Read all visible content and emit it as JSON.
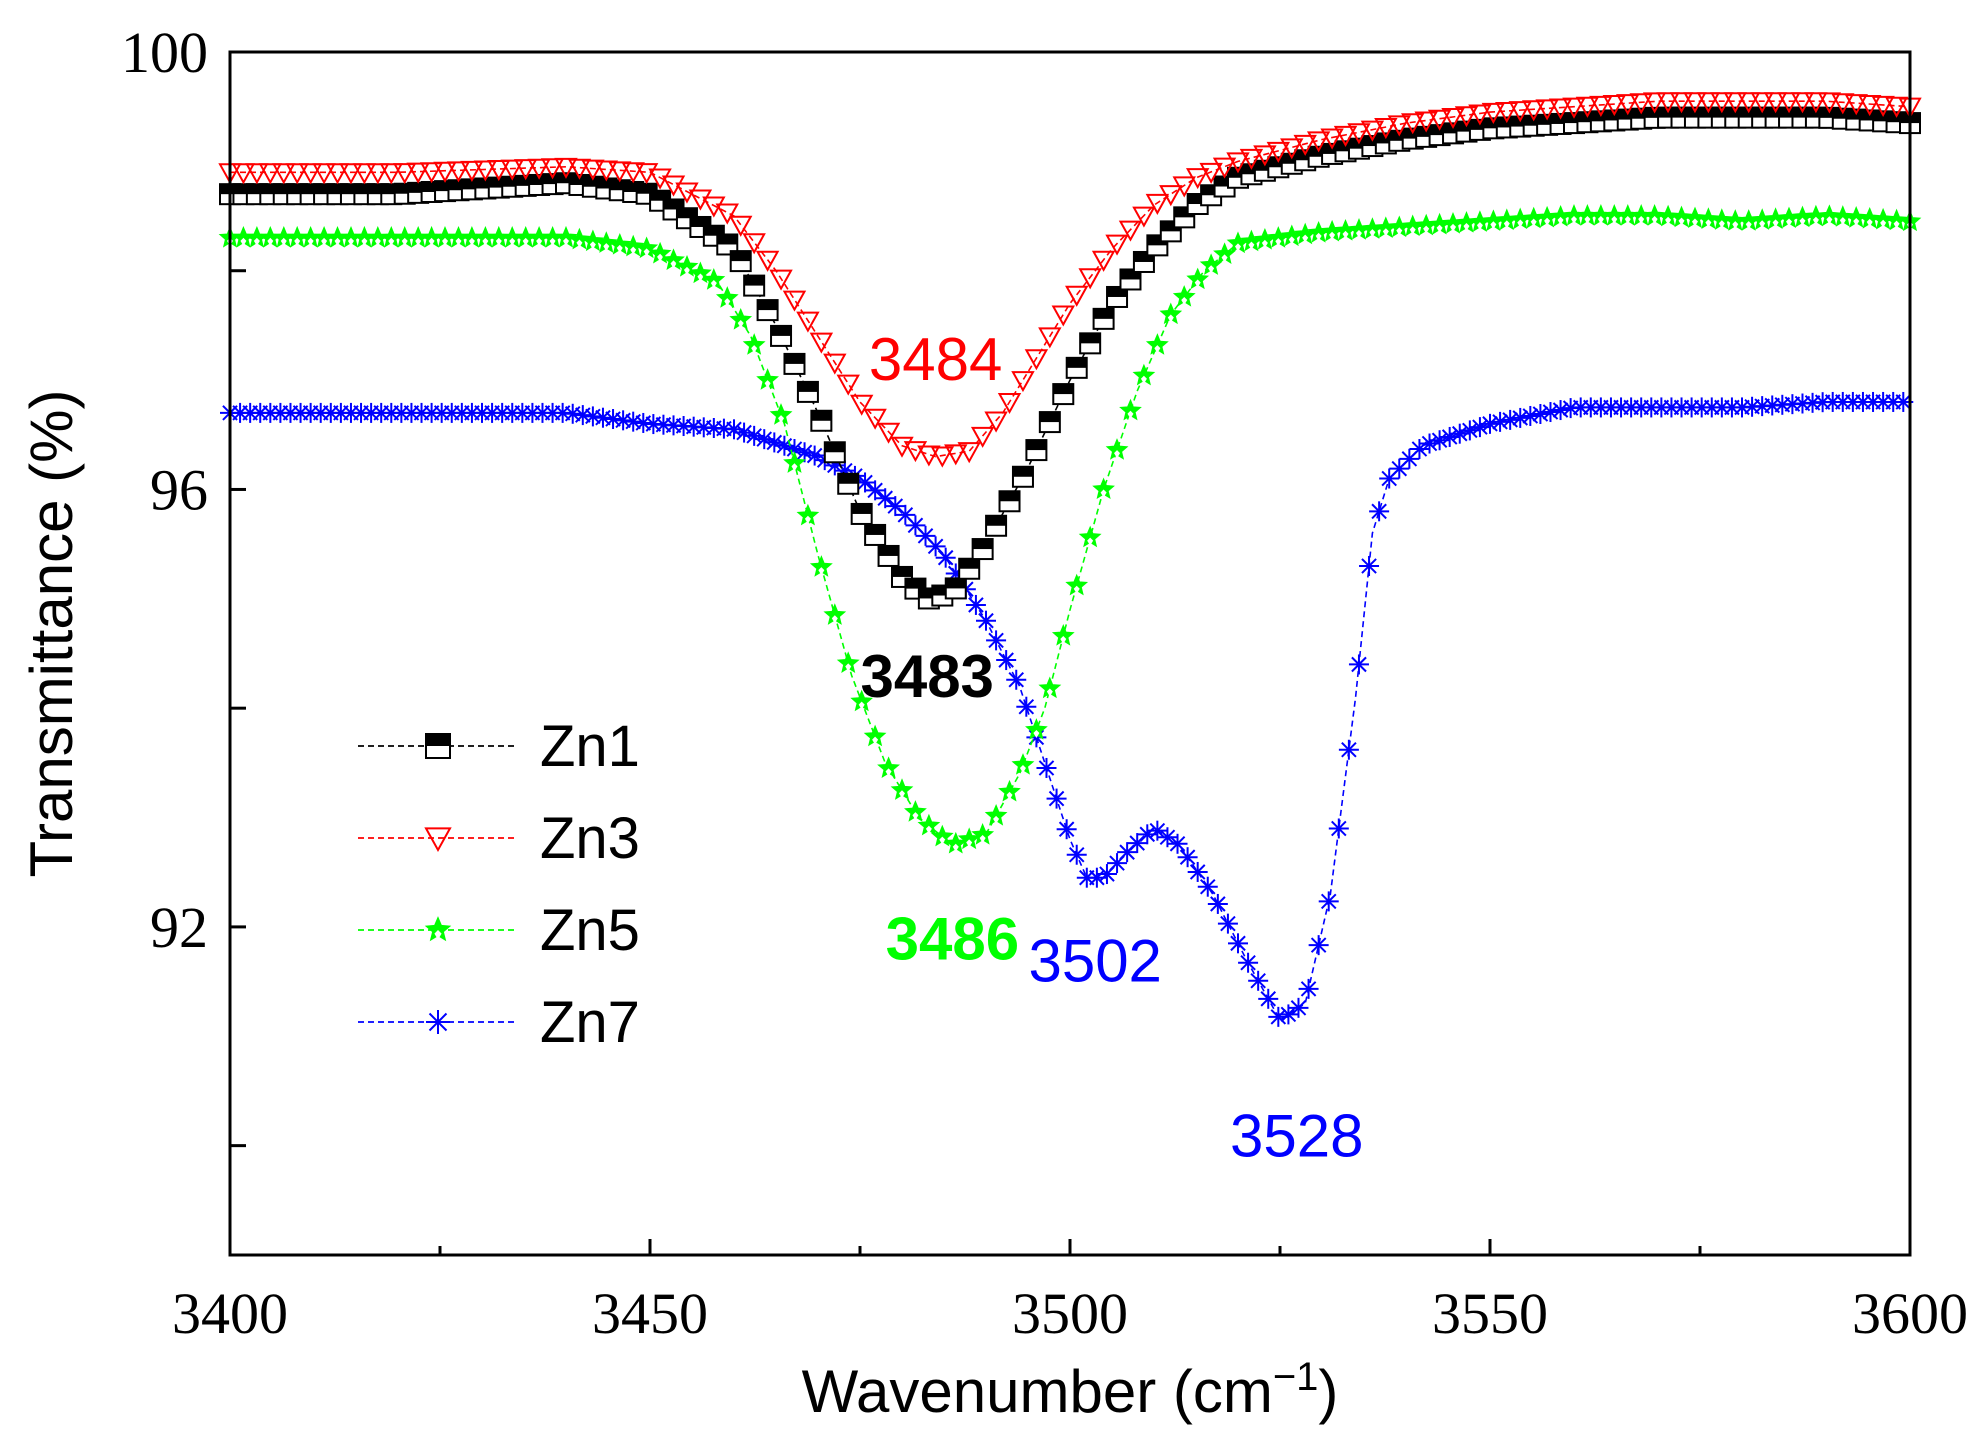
{
  "chart_data": {
    "type": "line",
    "title": "",
    "xlabel": "Wavenumber (cm",
    "xlabel_sup": "−1",
    "xlabel_end": ")",
    "ylabel": "Transmittance (%)",
    "xlim": [
      3400,
      3600
    ],
    "ylim": [
      89,
      100
    ],
    "x_ticks": [
      3400,
      3450,
      3500,
      3550,
      3600
    ],
    "x_tick_labels": [
      "3400",
      "3450",
      "3500",
      "3550",
      "3600"
    ],
    "y_ticks": [
      90,
      92,
      94,
      96,
      98,
      100
    ],
    "y_tick_labels": [
      "",
      "92",
      "",
      "96",
      "",
      "100"
    ],
    "legend_position": "lower-left",
    "series": [
      {
        "name": "Zn1",
        "color": "#000000",
        "marker": "square-half",
        "points": [
          [
            3400,
            98.7
          ],
          [
            3420,
            98.7
          ],
          [
            3440,
            98.8
          ],
          [
            3450,
            98.7
          ],
          [
            3460,
            98.2
          ],
          [
            3465,
            97.5
          ],
          [
            3470,
            96.7
          ],
          [
            3475,
            95.8
          ],
          [
            3480,
            95.2
          ],
          [
            3483,
            95.0
          ],
          [
            3486,
            95.05
          ],
          [
            3490,
            95.5
          ],
          [
            3495,
            96.2
          ],
          [
            3500,
            97.0
          ],
          [
            3505,
            97.7
          ],
          [
            3510,
            98.2
          ],
          [
            3515,
            98.6
          ],
          [
            3520,
            98.85
          ],
          [
            3530,
            99.05
          ],
          [
            3540,
            99.2
          ],
          [
            3550,
            99.3
          ],
          [
            3560,
            99.35
          ],
          [
            3570,
            99.4
          ],
          [
            3580,
            99.4
          ],
          [
            3590,
            99.4
          ],
          [
            3600,
            99.35
          ]
        ]
      },
      {
        "name": "Zn3",
        "color": "#ff0000",
        "marker": "triangle-down",
        "points": [
          [
            3400,
            98.9
          ],
          [
            3420,
            98.9
          ],
          [
            3440,
            98.95
          ],
          [
            3450,
            98.9
          ],
          [
            3460,
            98.5
          ],
          [
            3465,
            98.0
          ],
          [
            3470,
            97.4
          ],
          [
            3475,
            96.8
          ],
          [
            3480,
            96.4
          ],
          [
            3484,
            96.3
          ],
          [
            3488,
            96.35
          ],
          [
            3492,
            96.7
          ],
          [
            3496,
            97.2
          ],
          [
            3500,
            97.7
          ],
          [
            3505,
            98.2
          ],
          [
            3510,
            98.6
          ],
          [
            3515,
            98.85
          ],
          [
            3520,
            99.0
          ],
          [
            3530,
            99.2
          ],
          [
            3540,
            99.35
          ],
          [
            3550,
            99.45
          ],
          [
            3560,
            99.5
          ],
          [
            3570,
            99.55
          ],
          [
            3580,
            99.55
          ],
          [
            3590,
            99.55
          ],
          [
            3600,
            99.5
          ]
        ]
      },
      {
        "name": "Zn5",
        "color": "#00ff00",
        "marker": "star",
        "points": [
          [
            3400,
            98.3
          ],
          [
            3420,
            98.3
          ],
          [
            3440,
            98.3
          ],
          [
            3450,
            98.2
          ],
          [
            3458,
            97.9
          ],
          [
            3462,
            97.4
          ],
          [
            3466,
            96.6
          ],
          [
            3470,
            95.4
          ],
          [
            3474,
            94.3
          ],
          [
            3478,
            93.5
          ],
          [
            3482,
            93.0
          ],
          [
            3486,
            92.75
          ],
          [
            3490,
            92.85
          ],
          [
            3494,
            93.4
          ],
          [
            3497,
            94.0
          ],
          [
            3500,
            94.9
          ],
          [
            3504,
            96.0
          ],
          [
            3508,
            96.9
          ],
          [
            3512,
            97.6
          ],
          [
            3516,
            98.0
          ],
          [
            3520,
            98.25
          ],
          [
            3530,
            98.35
          ],
          [
            3540,
            98.4
          ],
          [
            3550,
            98.45
          ],
          [
            3560,
            98.5
          ],
          [
            3570,
            98.5
          ],
          [
            3580,
            98.45
          ],
          [
            3590,
            98.5
          ],
          [
            3600,
            98.45
          ]
        ]
      },
      {
        "name": "Zn7",
        "color": "#0000ff",
        "marker": "asterisk",
        "points": [
          [
            3400,
            96.7
          ],
          [
            3420,
            96.7
          ],
          [
            3440,
            96.7
          ],
          [
            3450,
            96.6
          ],
          [
            3460,
            96.55
          ],
          [
            3470,
            96.3
          ],
          [
            3475,
            96.1
          ],
          [
            3480,
            95.8
          ],
          [
            3485,
            95.4
          ],
          [
            3490,
            94.8
          ],
          [
            3494,
            94.2
          ],
          [
            3497,
            93.5
          ],
          [
            3500,
            92.8
          ],
          [
            3502,
            92.45
          ],
          [
            3504,
            92.45
          ],
          [
            3507,
            92.7
          ],
          [
            3510,
            92.9
          ],
          [
            3513,
            92.75
          ],
          [
            3517,
            92.3
          ],
          [
            3521,
            91.7
          ],
          [
            3525,
            91.15
          ],
          [
            3528,
            91.3
          ],
          [
            3531,
            92.3
          ],
          [
            3534,
            94.1
          ],
          [
            3536,
            95.6
          ],
          [
            3538,
            96.1
          ],
          [
            3542,
            96.4
          ],
          [
            3550,
            96.6
          ],
          [
            3560,
            96.75
          ],
          [
            3570,
            96.75
          ],
          [
            3580,
            96.75
          ],
          [
            3590,
            96.8
          ],
          [
            3600,
            96.8
          ]
        ]
      }
    ],
    "annotations": [
      {
        "text": "3484",
        "color": "#ff0000",
        "bold": false,
        "x": 3484,
        "y": 97.0
      },
      {
        "text": "3483",
        "color": "#000000",
        "bold": true,
        "x": 3483,
        "y": 94.1
      },
      {
        "text": "3486",
        "color": "#00ff00",
        "bold": true,
        "x": 3486,
        "y": 91.7
      },
      {
        "text": "3502",
        "color": "#0000ff",
        "bold": false,
        "x": 3503,
        "y": 91.5
      },
      {
        "text": "3528",
        "color": "#0000ff",
        "bold": false,
        "x": 3527,
        "y": 89.9
      }
    ]
  }
}
